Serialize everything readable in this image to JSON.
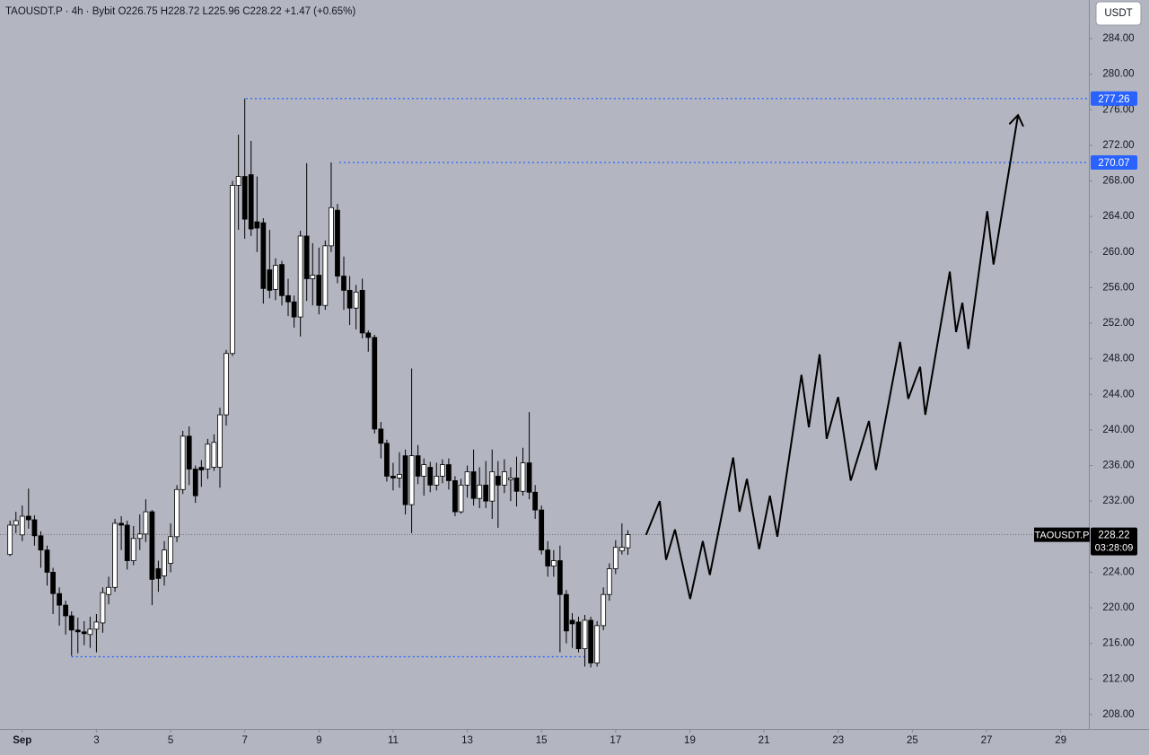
{
  "chart_data": {
    "type": "candlestick",
    "header": "TAOUSDT.P · 4h · Bybit  O226.75 H228.72 L225.96 C228.22 +1.47 (+0.65%)",
    "currency": "USDT",
    "xlim": [
      0.4,
      29.76
    ],
    "ylim": [
      206.38,
      288.34
    ],
    "xticks": [
      {
        "value": 1,
        "label": "Sep"
      },
      3,
      5,
      7,
      9,
      11,
      13,
      15,
      17,
      19,
      21,
      23,
      25,
      27,
      29
    ],
    "yticks": [
      {
        "value": 284,
        "label": "284.00"
      },
      {
        "value": 280,
        "label": "280.00"
      },
      {
        "value": 276,
        "label": "276.00"
      },
      {
        "value": 272,
        "label": "272.00"
      },
      {
        "value": 268,
        "label": "268.00"
      },
      {
        "value": 264,
        "label": "264.00"
      },
      {
        "value": 260,
        "label": "260.00"
      },
      {
        "value": 256,
        "label": "256.00"
      },
      {
        "value": 252,
        "label": "252.00"
      },
      {
        "value": 248,
        "label": "248.00"
      },
      {
        "value": 244,
        "label": "244.00"
      },
      {
        "value": 240,
        "label": "240.00"
      },
      {
        "value": 236,
        "label": "236.00"
      },
      {
        "value": 232,
        "label": "232.00"
      },
      {
        "value": 224,
        "label": "224.00"
      },
      {
        "value": 220,
        "label": "220.00"
      },
      {
        "value": 216,
        "label": "216.00"
      },
      {
        "value": 212,
        "label": "212.00"
      },
      {
        "value": 208,
        "label": "208.00"
      }
    ],
    "x": [
      0.67,
      0.83,
      1.0,
      1.17,
      1.33,
      1.5,
      1.67,
      1.83,
      2.0,
      2.17,
      2.33,
      2.5,
      2.67,
      2.83,
      3.0,
      3.17,
      3.33,
      3.5,
      3.67,
      3.83,
      4.0,
      4.17,
      4.33,
      4.5,
      4.67,
      4.83,
      5.0,
      5.17,
      5.33,
      5.5,
      5.67,
      5.83,
      6.0,
      6.17,
      6.33,
      6.5,
      6.67,
      6.83,
      7.0,
      7.17,
      7.33,
      7.5,
      7.67,
      7.83,
      8.0,
      8.17,
      8.33,
      8.5,
      8.67,
      8.83,
      9.0,
      9.17,
      9.33,
      9.5,
      9.67,
      9.83,
      10.0,
      10.17,
      10.33,
      10.5,
      10.67,
      10.83,
      11.0,
      11.17,
      11.33,
      11.5,
      11.67,
      11.83,
      12.0,
      12.17,
      12.33,
      12.5,
      12.67,
      12.83,
      13.0,
      13.17,
      13.33,
      13.5,
      13.67,
      13.83,
      14.0,
      14.17,
      14.33,
      14.5,
      14.67,
      14.83,
      15.0,
      15.17,
      15.33,
      15.5,
      15.67,
      15.83,
      16.0,
      16.17,
      16.33,
      16.5,
      16.67,
      16.83,
      17.0,
      17.17,
      17.33
    ],
    "open": [
      226.0,
      229.3,
      228.2,
      230.3,
      229.9,
      228.1,
      226.5,
      224.0,
      221.6,
      220.3,
      219.1,
      217.5,
      217.3,
      217.0,
      217.6,
      218.3,
      221.5,
      222.3,
      229.5,
      229.3,
      225.3,
      227.8,
      228.3,
      230.8,
      224.4,
      223.6,
      225.0,
      228.0,
      233.3,
      239.3,
      235.6,
      235.8,
      235.6,
      235.8,
      235.8,
      241.7,
      248.6,
      267.5,
      268.5,
      268.7,
      263.4,
      263.3,
      258.0,
      255.8,
      258.6,
      255.1,
      254.4,
      252.7,
      261.8,
      257.0,
      257.4,
      254.0,
      260.7,
      264.7,
      257.3,
      255.7,
      253.7,
      255.7,
      250.9,
      250.4,
      240.1,
      238.5,
      234.8,
      234.6,
      237.1,
      231.6,
      237.1,
      234.8,
      235.8,
      233.8,
      234.8,
      236.1,
      234.3,
      230.8,
      233.8,
      235.3,
      232.3,
      233.8,
      232.0,
      234.8,
      233.8,
      234.4,
      234.6,
      233.1,
      236.3,
      233.0,
      231.0,
      226.5,
      224.7,
      225.3,
      221.5,
      218.6,
      218.4,
      215.4,
      218.6,
      213.8,
      218.0,
      221.5,
      224.4,
      226.4,
      226.75
    ],
    "high": [
      229.8,
      230.8,
      231.5,
      233.4,
      230.4,
      228.6,
      227.0,
      224.5,
      222.3,
      220.8,
      219.6,
      218.9,
      218.5,
      219.0,
      219.3,
      222.3,
      223.5,
      230.0,
      230.3,
      229.8,
      229.2,
      230.5,
      232.2,
      231.0,
      225.3,
      227.5,
      229.5,
      233.8,
      239.9,
      240.4,
      236.0,
      236.6,
      239.0,
      239.5,
      242.5,
      249.0,
      268.0,
      273.2,
      277.26,
      272.5,
      268.5,
      263.8,
      262.5,
      259.3,
      259.0,
      257.0,
      255.1,
      262.4,
      270.0,
      261.0,
      260.5,
      261.3,
      270.07,
      265.4,
      259.5,
      257.3,
      256.3,
      257.0,
      251.2,
      250.7,
      240.9,
      238.9,
      236.3,
      237.5,
      237.8,
      246.9,
      238.3,
      236.8,
      236.4,
      236.3,
      236.7,
      236.8,
      234.8,
      234.5,
      236.0,
      237.8,
      235.8,
      236.5,
      237.8,
      236.5,
      236.7,
      235.8,
      237.0,
      238.0,
      242.0,
      233.8,
      231.5,
      227.5,
      226.5,
      227.0,
      222.0,
      219.4,
      219.0,
      219.2,
      219.0,
      218.5,
      222.3,
      225.0,
      227.6,
      229.5,
      228.72
    ],
    "low": [
      225.8,
      228.4,
      227.5,
      228.9,
      227.0,
      224.5,
      222.5,
      219.3,
      218.0,
      217.0,
      214.6,
      214.9,
      215.8,
      215.5,
      215.0,
      217.2,
      220.4,
      221.8,
      226.5,
      224.3,
      224.8,
      226.5,
      227.4,
      220.3,
      221.8,
      222.5,
      224.0,
      227.4,
      232.8,
      233.8,
      231.8,
      233.6,
      234.5,
      235.4,
      233.5,
      240.5,
      248.3,
      262.5,
      261.5,
      261.8,
      260.0,
      254.2,
      254.8,
      254.6,
      254.0,
      252.8,
      251.5,
      250.5,
      254.5,
      254.0,
      253.0,
      253.5,
      260.0,
      256.5,
      253.5,
      251.8,
      251.3,
      250.3,
      248.8,
      239.6,
      236.8,
      234.2,
      233.2,
      233.5,
      230.5,
      228.4,
      233.9,
      232.6,
      233.0,
      233.2,
      234.0,
      233.3,
      230.3,
      230.6,
      232.4,
      231.5,
      231.2,
      231.2,
      230.0,
      229.0,
      232.9,
      232.0,
      231.4,
      232.6,
      232.2,
      230.0,
      226.0,
      223.5,
      223.5,
      215.0,
      216.0,
      215.5,
      215.0,
      213.4,
      213.3,
      213.4,
      217.5,
      220.8,
      223.8,
      226.0,
      225.96
    ],
    "close": [
      229.3,
      229.8,
      230.3,
      229.9,
      228.1,
      226.5,
      224.0,
      221.6,
      220.3,
      219.1,
      217.5,
      217.3,
      217.1,
      217.6,
      218.4,
      221.7,
      222.3,
      229.5,
      229.3,
      225.3,
      227.8,
      228.3,
      230.8,
      223.2,
      223.3,
      226.5,
      228.0,
      233.3,
      239.3,
      235.6,
      232.6,
      235.5,
      238.4,
      238.6,
      241.7,
      248.6,
      267.5,
      268.5,
      263.7,
      262.6,
      262.7,
      255.9,
      255.7,
      258.5,
      255.1,
      254.4,
      252.7,
      261.8,
      257.0,
      257.4,
      254.0,
      260.7,
      265.0,
      257.3,
      255.7,
      253.7,
      255.5,
      250.9,
      250.4,
      240.1,
      238.5,
      234.8,
      234.6,
      235.0,
      231.6,
      237.1,
      234.8,
      236.1,
      233.8,
      234.8,
      236.1,
      234.3,
      230.8,
      233.8,
      235.3,
      232.3,
      233.8,
      232.0,
      235.3,
      233.8,
      235.3,
      234.6,
      233.1,
      236.3,
      233.0,
      231.0,
      226.5,
      224.7,
      225.3,
      221.5,
      217.4,
      218.2,
      215.4,
      218.6,
      213.8,
      218.0,
      221.5,
      224.4,
      226.8,
      226.8,
      228.22
    ],
    "up_color": "#ffffff",
    "down_color": "#000000",
    "price_lines": [
      {
        "value": 277.26,
        "from": 7.03
      },
      {
        "value": 270.07,
        "from": 9.55
      }
    ],
    "support_line": {
      "value": 214.5,
      "from": 2.33,
      "to": 16.25
    },
    "level_color": "#2962ff",
    "last_price": {
      "value": 228.22,
      "symbol": "TAOUSDT.P",
      "countdown": "03:28:09"
    },
    "projection": {
      "x": [
        17.82,
        18.19,
        18.36,
        18.6,
        19.01,
        19.35,
        19.54,
        20.17,
        20.34,
        20.54,
        20.87,
        21.16,
        21.36,
        22.01,
        22.21,
        22.5,
        22.69,
        23.0,
        23.34,
        23.83,
        24.02,
        24.67,
        24.89,
        25.21,
        25.35,
        26.01,
        26.18,
        26.35,
        26.51,
        27.02,
        27.19,
        27.85
      ],
      "y": [
        228.2,
        232.0,
        225.4,
        228.8,
        221.0,
        227.5,
        223.7,
        236.9,
        230.8,
        234.5,
        226.6,
        232.6,
        228.0,
        246.2,
        240.3,
        248.5,
        239.0,
        243.7,
        234.3,
        241.0,
        235.5,
        249.9,
        243.5,
        247.1,
        241.7,
        257.8,
        251.0,
        254.3,
        249.1,
        264.6,
        258.6,
        275.4
      ]
    }
  }
}
